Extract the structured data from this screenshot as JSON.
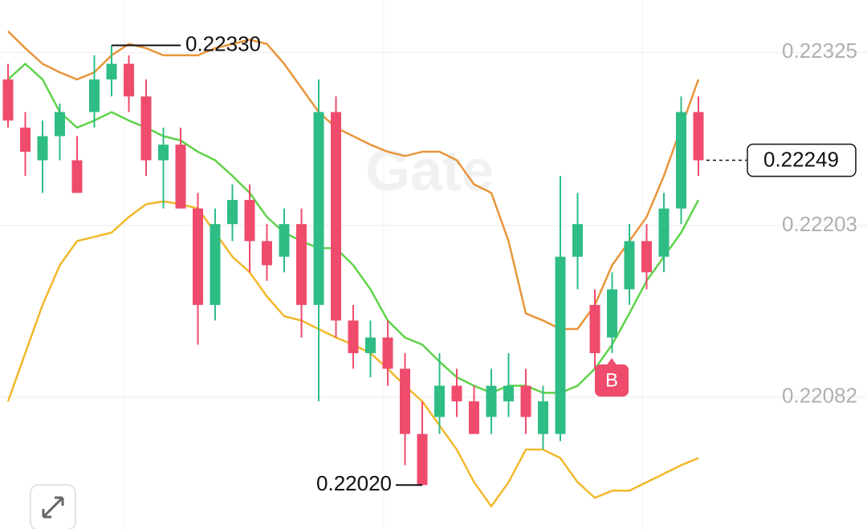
{
  "chart_data": {
    "type": "candlestick",
    "watermark": "Gate",
    "up_color": "#2ebd85",
    "down_color": "#ef4b6c",
    "open": [
      0.22306,
      0.22272,
      0.22249,
      0.22266,
      0.22249,
      0.22283,
      0.22306,
      0.22317,
      0.22294,
      0.22249,
      0.2226,
      0.22215,
      0.22147,
      0.22204,
      0.22221,
      0.22192,
      0.22181,
      0.22204,
      0.22147,
      0.22283,
      0.22136,
      0.22113,
      0.22124,
      0.22102,
      0.22056,
      0.22068,
      0.2209,
      0.22079,
      0.22068,
      0.22079,
      0.2209,
      0.22056,
      0.22056,
      0.22181,
      0.22147,
      0.22124,
      0.22158,
      0.22192,
      0.22181,
      0.22215,
      0.22283
    ],
    "high": [
      0.22317,
      0.22283,
      0.22277,
      0.22289,
      0.22266,
      0.22323,
      0.2233,
      0.22323,
      0.22306,
      0.22272,
      0.22272,
      0.22226,
      0.22215,
      0.22232,
      0.22232,
      0.22204,
      0.22215,
      0.22215,
      0.22306,
      0.22294,
      0.22147,
      0.22136,
      0.22136,
      0.22113,
      0.22079,
      0.22113,
      0.22102,
      0.2209,
      0.22102,
      0.22113,
      0.22102,
      0.2209,
      0.22238,
      0.22226,
      0.22158,
      0.2217,
      0.22204,
      0.22204,
      0.22226,
      0.22294,
      0.22294
    ],
    "low": [
      0.22272,
      0.22238,
      0.22226,
      0.22249,
      0.22226,
      0.22272,
      0.22294,
      0.22283,
      0.22238,
      0.22215,
      0.22215,
      0.22119,
      0.22136,
      0.22192,
      0.2217,
      0.22164,
      0.2217,
      0.22124,
      0.22079,
      0.22124,
      0.22102,
      0.22096,
      0.2209,
      0.22034,
      0.2202,
      0.22056,
      0.22068,
      0.22056,
      0.22056,
      0.22068,
      0.22056,
      0.22045,
      0.22051,
      0.22158,
      0.22102,
      0.22113,
      0.22147,
      0.22158,
      0.2217,
      0.22204,
      0.22238
    ],
    "close": [
      0.22277,
      0.22255,
      0.22266,
      0.22283,
      0.22226,
      0.22306,
      0.22317,
      0.22294,
      0.22249,
      0.2226,
      0.22215,
      0.22147,
      0.22204,
      0.22221,
      0.22192,
      0.22175,
      0.22204,
      0.22147,
      0.22283,
      0.22136,
      0.22113,
      0.22124,
      0.22102,
      0.22056,
      0.2202,
      0.2209,
      0.22079,
      0.22056,
      0.2209,
      0.2209,
      0.22068,
      0.22079,
      0.22181,
      0.22204,
      0.22113,
      0.22158,
      0.22192,
      0.2217,
      0.22215,
      0.22283,
      0.22249
    ],
    "lines": [
      {
        "color": "#e8953a",
        "values": [
          0.2234,
          0.22328,
          0.22317,
          0.22311,
          0.22306,
          0.22311,
          0.22323,
          0.22331,
          0.22328,
          0.22323,
          0.22323,
          0.22323,
          0.22328,
          0.22331,
          0.22334,
          0.22331,
          0.22317,
          0.223,
          0.22283,
          0.22272,
          0.22266,
          0.2226,
          0.22255,
          0.22252,
          0.22255,
          0.22255,
          0.22249,
          0.22232,
          0.22226,
          0.22192,
          0.22141,
          0.22136,
          0.2213,
          0.2213,
          0.22147,
          0.22175,
          0.22192,
          0.22209,
          0.22238,
          0.22272,
          0.22306
        ]
      },
      {
        "color": "#f2b82b",
        "values": [
          0.22079,
          0.22113,
          0.22147,
          0.22175,
          0.22192,
          0.22195,
          0.22198,
          0.22209,
          0.22218,
          0.2222,
          0.22218,
          0.22215,
          0.22198,
          0.22181,
          0.2217,
          0.22153,
          0.22139,
          0.22136,
          0.2213,
          0.22124,
          0.22119,
          0.22113,
          0.22102,
          0.2209,
          0.22079,
          0.22062,
          0.22045,
          0.22022,
          0.22005,
          0.22022,
          0.22045,
          0.22045,
          0.22039,
          0.22022,
          0.22011,
          0.22016,
          0.22016,
          0.22022,
          0.22028,
          0.22034,
          0.22039
        ]
      },
      {
        "color": "#5fd34a",
        "values": [
          0.22306,
          0.22317,
          0.22306,
          0.22283,
          0.22272,
          0.22277,
          0.22283,
          0.22277,
          0.22272,
          0.22266,
          0.22263,
          0.22255,
          0.22249,
          0.22238,
          0.22226,
          0.22209,
          0.22198,
          0.22192,
          0.22187,
          0.22187,
          0.22175,
          0.22158,
          0.22136,
          0.22124,
          0.22119,
          0.22107,
          0.22096,
          0.2209,
          0.22085,
          0.2209,
          0.2209,
          0.22085,
          0.22085,
          0.2209,
          0.22102,
          0.22119,
          0.22141,
          0.22164,
          0.22181,
          0.22198,
          0.22221
        ]
      }
    ],
    "ylim": [
      0.21989,
      0.22362
    ],
    "yticks": [
      0.22325,
      0.22203,
      0.22082
    ],
    "grid": true,
    "high_label": "0.22330",
    "low_label": "0.22020",
    "last_price_label": "0.22249",
    "marker_label": "B"
  }
}
